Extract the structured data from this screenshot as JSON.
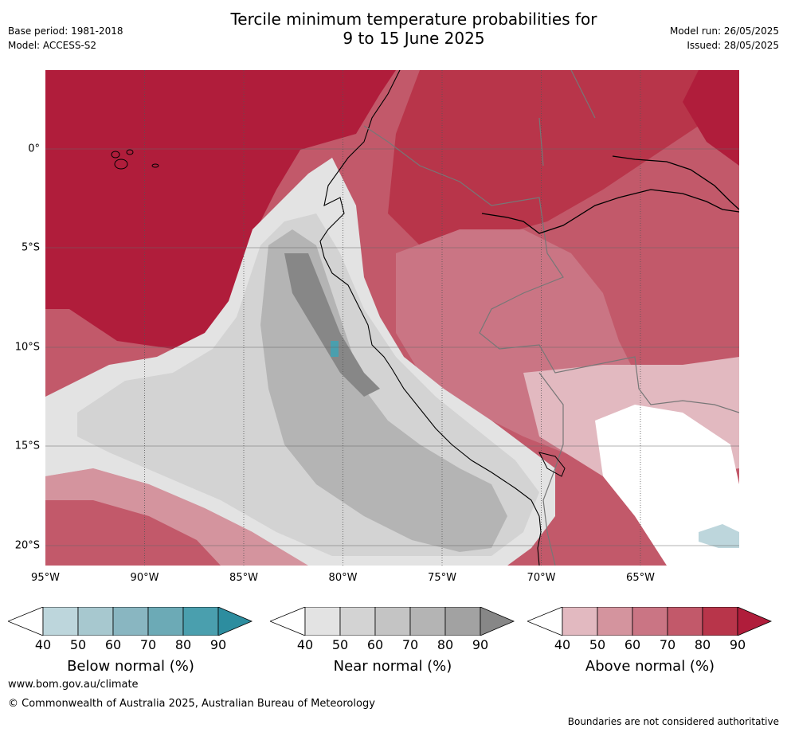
{
  "title_line1": "Tercile minimum temperature probabilities for",
  "title_line2": "9 to 15 June 2025",
  "base_period": "Base period: 1981-2018",
  "model": "Model: ACCESS-S2",
  "model_run": "Model run: 26/05/2025",
  "issued": "Issued: 28/05/2025",
  "lon_ticks": [
    "95°W",
    "90°W",
    "85°W",
    "80°W",
    "75°W",
    "70°W",
    "65°W"
  ],
  "lat_ticks": [
    "0°",
    "5°S",
    "10°S",
    "15°S",
    "20°S"
  ],
  "legends": [
    {
      "label": "Below normal (%)",
      "ticks": [
        "40",
        "50",
        "60",
        "70",
        "80",
        "90"
      ],
      "colors": [
        "#ffffff",
        "#bdd6dc",
        "#a7c8cf",
        "#89b6c1",
        "#6caab6",
        "#4a9fae",
        "#2d8d9f"
      ]
    },
    {
      "label": "Near normal (%)",
      "ticks": [
        "40",
        "50",
        "60",
        "70",
        "80",
        "90"
      ],
      "colors": [
        "#ffffff",
        "#e3e3e3",
        "#d3d3d3",
        "#c4c4c4",
        "#b4b4b4",
        "#a2a2a2",
        "#878787"
      ]
    },
    {
      "label": "Above normal (%)",
      "ticks": [
        "40",
        "50",
        "60",
        "70",
        "80",
        "90"
      ],
      "colors": [
        "#ffffff",
        "#e2b9c0",
        "#d4949e",
        "#ca7584",
        "#c2596a",
        "#b8354a",
        "#b01d3b"
      ]
    }
  ],
  "website": "www.bom.gov.au/climate",
  "copyright": "© Commonwealth of Australia 2025, Australian Bureau of Meteorology",
  "disclaimer": "Boundaries are not considered authoritative"
}
